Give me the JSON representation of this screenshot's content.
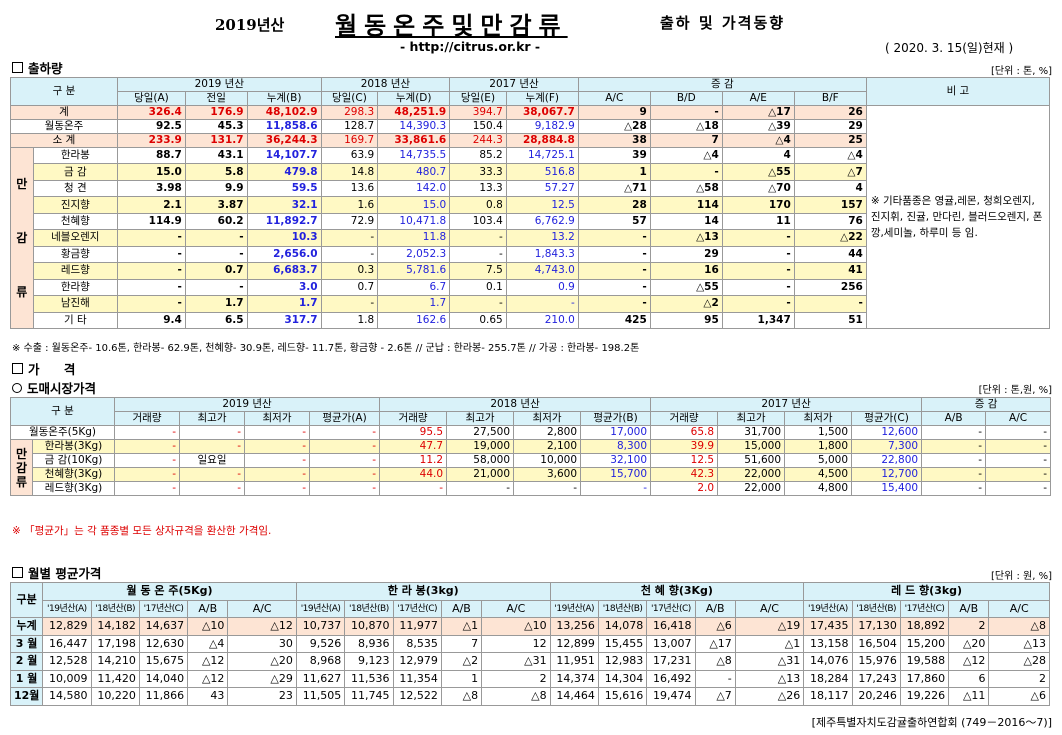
{
  "header": {
    "year_label": "2019년산",
    "main_title": "월동온주및만감류",
    "sub_title": "출하 및 가격동향",
    "url": "- http://citrus.or.kr -",
    "as_of": "( 2020. 3. 15(일)현재 )"
  },
  "shipment": {
    "section_title": "출하량",
    "unit": "[단위 : 톤, %]",
    "head": {
      "gubun": "구 분",
      "y2019": "2019 년산",
      "y2018": "2018 년산",
      "y2017": "2017 년산",
      "change": "증 감",
      "remark": "비 고",
      "day_a": "당일(A)",
      "prev": "전일",
      "cum_b": "누계(B)",
      "day_c": "당일(C)",
      "cum_d": "누계(D)",
      "day_e": "당일(E)",
      "cum_f": "누계(F)",
      "ac": "A/C",
      "bd": "B/D",
      "ae": "A/E",
      "bf": "B/F"
    },
    "side_label": [
      "만",
      "감",
      "류"
    ],
    "remark_text": "※ 기타품종은 영귤,레몬, 청희오렌지, 진지휘, 진귤, 만다린, 블러드오렌지, 폰깡,세미놀, 하루미 등 임.",
    "total": {
      "name": "계",
      "v": [
        "326.4",
        "176.9",
        "48,102.9",
        "298.3",
        "48,251.9",
        "394.7",
        "38,067.7",
        "9",
        "-",
        "△17",
        "26"
      ]
    },
    "winter": {
      "name": "월동온주",
      "v": [
        "92.5",
        "45.3",
        "11,858.6",
        "128.7",
        "14,390.3",
        "150.4",
        "9,182.9",
        "△28",
        "△18",
        "△39",
        "29"
      ]
    },
    "subtotal": {
      "name": "소 계",
      "v": [
        "233.9",
        "131.7",
        "36,244.3",
        "169.7",
        "33,861.6",
        "244.3",
        "28,884.8",
        "38",
        "7",
        "△4",
        "25"
      ]
    },
    "rows": [
      {
        "name": "한라봉",
        "v": [
          "88.7",
          "43.1",
          "14,107.7",
          "63.9",
          "14,735.5",
          "85.2",
          "14,725.1",
          "39",
          "△4",
          "4",
          "△4"
        ]
      },
      {
        "name": "금 감",
        "v": [
          "15.0",
          "5.8",
          "479.8",
          "14.8",
          "480.7",
          "33.3",
          "516.8",
          "1",
          "-",
          "△55",
          "△7"
        ]
      },
      {
        "name": "청 견",
        "v": [
          "3.98",
          "9.9",
          "59.5",
          "13.6",
          "142.0",
          "13.3",
          "57.27",
          "△71",
          "△58",
          "△70",
          "4"
        ]
      },
      {
        "name": "진지향",
        "v": [
          "2.1",
          "3.87",
          "32.1",
          "1.6",
          "15.0",
          "0.8",
          "12.5",
          "28",
          "114",
          "170",
          "157"
        ]
      },
      {
        "name": "천혜향",
        "v": [
          "114.9",
          "60.2",
          "11,892.7",
          "72.9",
          "10,471.8",
          "103.4",
          "6,762.9",
          "57",
          "14",
          "11",
          "76"
        ]
      },
      {
        "name": "네블오렌지",
        "v": [
          "-",
          "-",
          "10.3",
          "-",
          "11.8",
          "-",
          "13.2",
          "-",
          "△13",
          "-",
          "△22"
        ]
      },
      {
        "name": "황금향",
        "v": [
          "-",
          "-",
          "2,656.0",
          "-",
          "2,052.3",
          "-",
          "1,843.3",
          "-",
          "29",
          "-",
          "44"
        ]
      },
      {
        "name": "레드향",
        "v": [
          "-",
          "0.7",
          "6,683.7",
          "0.3",
          "5,781.6",
          "7.5",
          "4,743.0",
          "-",
          "16",
          "-",
          "41"
        ]
      },
      {
        "name": "한라향",
        "v": [
          "-",
          "-",
          "3.0",
          "0.7",
          "6.7",
          "0.1",
          "0.9",
          "-",
          "△55",
          "-",
          "256"
        ]
      },
      {
        "name": "남진해",
        "v": [
          "-",
          "1.7",
          "1.7",
          "-",
          "1.7",
          "-",
          "-",
          "-",
          "△2",
          "-",
          "-"
        ]
      },
      {
        "name": "기 타",
        "v": [
          "9.4",
          "6.5",
          "317.7",
          "1.8",
          "162.6",
          "0.65",
          "210.0",
          "425",
          "95",
          "1,347",
          "51"
        ]
      }
    ],
    "note": "※ 수출 : 월동온주- 10.6톤, 한라봉- 62.9톤, 천혜향- 30.9톤, 레드향- 11.7톤, 황금향 - 2.6톤 // 군납 : 한라봉- 255.7톤 // 가공 : 한라봉- 198.2톤"
  },
  "price": {
    "section_title": "가 격",
    "sub_title": "도매시장가격",
    "unit": "[단위 : 톤,원, %]",
    "head": {
      "gubun": "구 분",
      "y2019": "2019 년산",
      "y2018": "2018 년산",
      "y2017": "2017 년산",
      "change": "증 감",
      "vol": "거래량",
      "max": "최고가",
      "min": "최저가",
      "avg_a": "평균가(A)",
      "avg_b": "평균가(B)",
      "avg_c": "평균가(C)",
      "ab": "A/B",
      "ac": "A/C"
    },
    "side_label": [
      "만",
      "감",
      "류"
    ],
    "winter": {
      "name": "월동온주(5Kg)",
      "v": [
        "-",
        "-",
        "-",
        "-",
        "95.5",
        "27,500",
        "2,800",
        "17,000",
        "65.8",
        "31,700",
        "1,500",
        "12,600",
        "-",
        "-"
      ]
    },
    "rows": [
      {
        "name": "한라봉(3Kg)",
        "v": [
          "-",
          "-",
          "-",
          "-",
          "47.7",
          "19,000",
          "2,100",
          "8,300",
          "39.9",
          "15,000",
          "1,800",
          "7,300",
          "-",
          "-"
        ]
      },
      {
        "name": "금 감(10Kg)",
        "v": [
          "-",
          "일요일",
          "-",
          "-",
          "11.2",
          "58,000",
          "10,000",
          "32,100",
          "12.5",
          "51,600",
          "5,000",
          "22,800",
          "-",
          "-"
        ]
      },
      {
        "name": "천혜향(3Kg)",
        "v": [
          "-",
          "-",
          "-",
          "-",
          "44.0",
          "21,000",
          "3,600",
          "15,700",
          "42.3",
          "22,000",
          "4,500",
          "12,700",
          "-",
          "-"
        ]
      },
      {
        "name": "레드향(3Kg)",
        "v": [
          "-",
          "-",
          "-",
          "-",
          "-",
          "-",
          "-",
          "-",
          "2.0",
          "22,000",
          "4,800",
          "15,400",
          "-",
          "-"
        ]
      }
    ],
    "note": "※ 「평균가」는 각 품종별 모든 상자규격을 환산한 가격임."
  },
  "monthly": {
    "section_title": "월별 평균가격",
    "unit": "[단위 : 원, %]",
    "head": {
      "gubun": "구분",
      "groups": [
        "월 동 온 주(5Kg)",
        "한 라 봉(3kg)",
        "천 혜 향(3Kg)",
        "레 드 향(3kg)"
      ],
      "cols": [
        "'19년산(A)",
        "'18년산(B)",
        "'17년산(C)",
        "A/B",
        "A/C"
      ]
    },
    "rows": [
      {
        "name": "누계",
        "v": [
          "12,829",
          "14,182",
          "14,637",
          "△10",
          "△12",
          "10,737",
          "10,870",
          "11,977",
          "△1",
          "△10",
          "13,256",
          "14,078",
          "16,418",
          "△6",
          "△19",
          "17,435",
          "17,130",
          "18,892",
          "2",
          "△8"
        ]
      },
      {
        "name": "3 월",
        "v": [
          "16,447",
          "17,198",
          "12,630",
          "△4",
          "30",
          "9,526",
          "8,936",
          "8,535",
          "7",
          "12",
          "12,899",
          "15,455",
          "13,007",
          "△17",
          "△1",
          "13,158",
          "16,504",
          "15,200",
          "△20",
          "△13"
        ]
      },
      {
        "name": "2 월",
        "v": [
          "12,528",
          "14,210",
          "15,675",
          "△12",
          "△20",
          "8,968",
          "9,123",
          "12,979",
          "△2",
          "△31",
          "11,951",
          "12,983",
          "17,231",
          "△8",
          "△31",
          "14,076",
          "15,976",
          "19,588",
          "△12",
          "△28"
        ]
      },
      {
        "name": "1 월",
        "v": [
          "10,009",
          "11,420",
          "14,040",
          "△12",
          "△29",
          "11,627",
          "11,536",
          "11,354",
          "1",
          "2",
          "14,374",
          "14,304",
          "16,492",
          "-",
          "△13",
          "18,284",
          "17,243",
          "17,860",
          "6",
          "2"
        ]
      },
      {
        "name": "12월",
        "v": [
          "14,580",
          "10,220",
          "11,866",
          "43",
          "23",
          "11,505",
          "11,745",
          "12,522",
          "△8",
          "△8",
          "14,464",
          "15,616",
          "19,474",
          "△7",
          "△26",
          "18,117",
          "20,246",
          "19,226",
          "△11",
          "△6"
        ]
      }
    ]
  },
  "footer": "[제주특별자치도감귤출하연합회 (749－2016～7)]"
}
